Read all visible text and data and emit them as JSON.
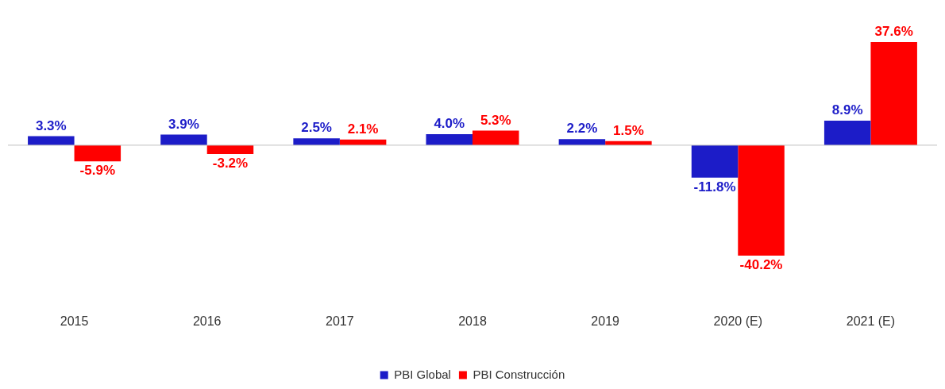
{
  "chart_data": {
    "type": "bar",
    "categories": [
      "2015",
      "2016",
      "2017",
      "2018",
      "2019",
      "2020 (E)",
      "2021 (E)"
    ],
    "series": [
      {
        "name": "PBI Global",
        "color": "#1c1cc8",
        "values": [
          3.3,
          3.9,
          2.5,
          4.0,
          2.2,
          -11.8,
          8.9
        ],
        "value_labels": [
          "3.3%",
          "3.9%",
          "2.5%",
          "4.0%",
          "2.2%",
          "-11.8%",
          "8.9%"
        ]
      },
      {
        "name": "PBI Construcción",
        "color": "#ff0000",
        "values": [
          -5.9,
          -3.2,
          2.1,
          5.3,
          1.5,
          -40.2,
          37.6
        ],
        "value_labels": [
          "-5.9%",
          "-3.2%",
          "2.1%",
          "5.3%",
          "1.5%",
          "-40.2%",
          "37.6%"
        ]
      }
    ],
    "legend": "bottom",
    "grid": false
  }
}
